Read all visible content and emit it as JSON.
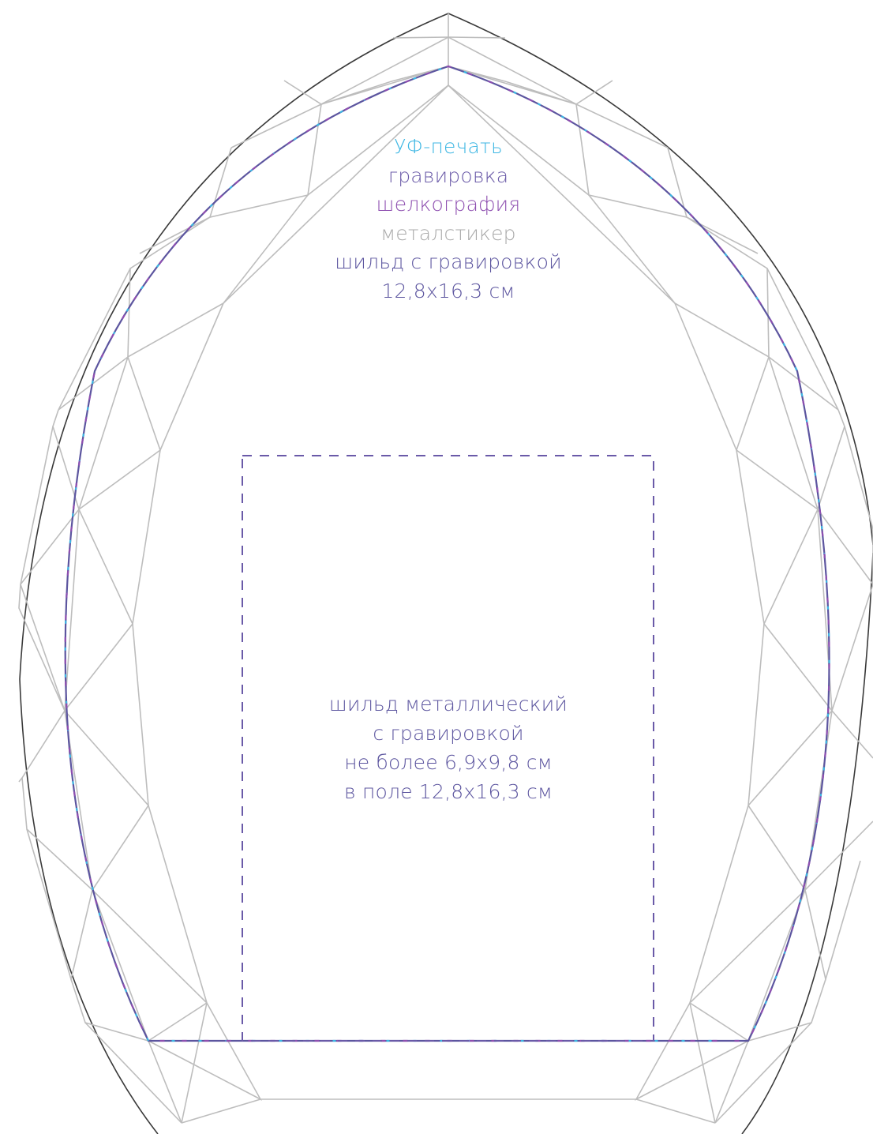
{
  "legend": {
    "uv_print": "УФ-печать",
    "engraving": "гравировка",
    "silkscreen": "шелкография",
    "metal_sticker": "металстикер",
    "plate_engraved": "шильд с гравировкой",
    "size": "12,8x16,3 см"
  },
  "plate_zone": {
    "line1": "шильд металлический",
    "line2": "с гравировкой",
    "line3": "не более 6,9x9,8 см",
    "line4": "в поле 12,8x16,3 см"
  },
  "colors": {
    "uv_print": "#3cb6e3",
    "engraving": "#6a5aa8",
    "silkscreen": "#8e4fb0",
    "metal_sticker": "#a9a9a9",
    "plate": "#5c559f",
    "outline": "#3a3a3a",
    "facet": "#bdbdbd",
    "dash": "#6a5aa8"
  }
}
